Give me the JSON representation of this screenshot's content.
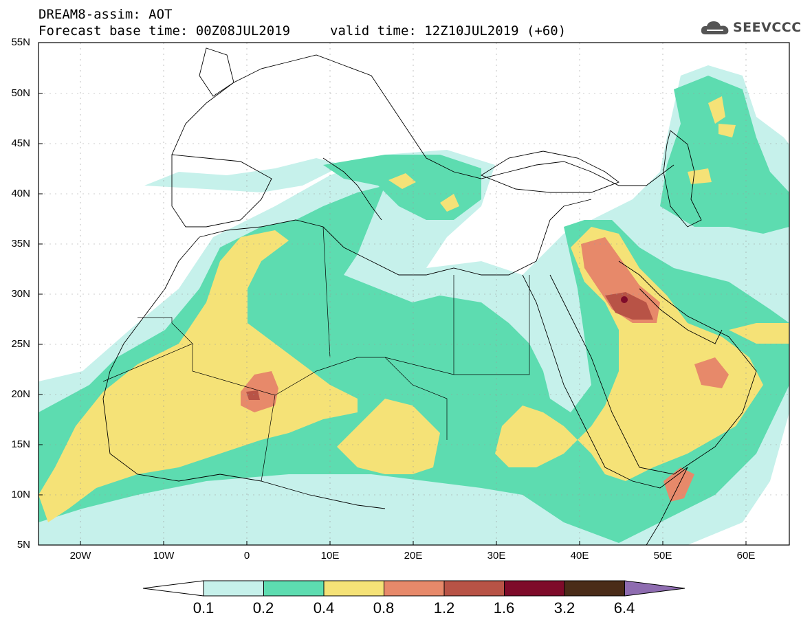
{
  "header": {
    "title_line1": "DREAM8-assim: AOT",
    "base_time": "Forecast base time: 00Z08JUL2019",
    "valid_time": "valid time: 12Z10JUL2019 (+60)",
    "logo_text": "SEEVCCC",
    "logo_icon": "cloud-icon"
  },
  "axes": {
    "lat_labels": [
      "55N",
      "50N",
      "45N",
      "40N",
      "35N",
      "30N",
      "25N",
      "20N",
      "15N",
      "10N",
      "5N"
    ],
    "lon_labels": [
      "20W",
      "10W",
      "0",
      "10E",
      "20E",
      "30E",
      "40E",
      "50E",
      "60E"
    ]
  },
  "colorbar": {
    "labels": [
      "0.1",
      "0.2",
      "0.4",
      "0.8",
      "1.2",
      "1.6",
      "3.2",
      "6.4"
    ],
    "colors": [
      "#ffffff",
      "#c6f1eb",
      "#5ddcb0",
      "#f5e277",
      "#e7896a",
      "#b85346",
      "#7e0b2a",
      "#4a2c18",
      "#8e6cb0"
    ]
  },
  "map": {
    "lon_range": [
      -25,
      65
    ],
    "lat_range": [
      5,
      55
    ],
    "field": "AOT (aerosol optical thickness)"
  }
}
